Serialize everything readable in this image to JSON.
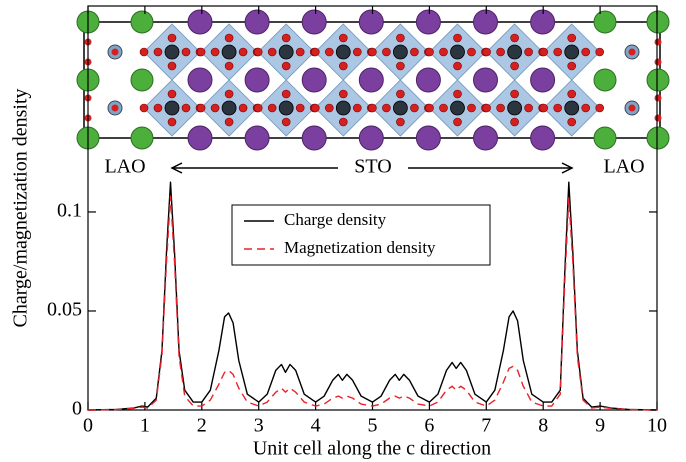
{
  "chart_data": {
    "type": "line",
    "x_label": "Unit cell along the c direction",
    "y_label": "Charge/magnetization density",
    "annotations": [
      "LAO",
      "STO",
      "LAO"
    ],
    "legend_position": "upper center",
    "xlim": [
      0,
      10
    ],
    "xticks": [
      0,
      1,
      2,
      3,
      4,
      5,
      6,
      7,
      8,
      9,
      10
    ],
    "ylim": [
      0,
      0.204
    ],
    "yticks": [
      0,
      0.05,
      0.1
    ],
    "x": [
      0,
      0.5,
      0.8,
      0.95,
      1.05,
      1.2,
      1.3,
      1.38,
      1.45,
      1.52,
      1.6,
      1.7,
      1.85,
      2.0,
      2.15,
      2.3,
      2.4,
      2.47,
      2.55,
      2.65,
      2.8,
      3.0,
      3.15,
      3.3,
      3.4,
      3.47,
      3.55,
      3.65,
      3.8,
      4.0,
      4.15,
      4.3,
      4.4,
      4.47,
      4.55,
      4.65,
      4.8,
      5.0,
      5.15,
      5.3,
      5.4,
      5.47,
      5.55,
      5.65,
      5.8,
      6.0,
      6.15,
      6.3,
      6.4,
      6.47,
      6.55,
      6.65,
      6.8,
      7.0,
      7.15,
      7.3,
      7.4,
      7.47,
      7.55,
      7.65,
      7.8,
      8.0,
      8.15,
      8.3,
      8.38,
      8.45,
      8.52,
      8.6,
      8.7,
      8.85,
      9.0,
      9.2,
      9.5,
      10
    ],
    "series": [
      {
        "name": "Charge density",
        "color": "#000000",
        "dash": "none",
        "values": [
          0,
          0.0003,
          0.001,
          0.002,
          0.0015,
          0.006,
          0.03,
          0.08,
          0.115,
          0.08,
          0.03,
          0.01,
          0.004,
          0.004,
          0.01,
          0.03,
          0.047,
          0.049,
          0.044,
          0.025,
          0.008,
          0.004,
          0.008,
          0.02,
          0.023,
          0.019,
          0.023,
          0.02,
          0.008,
          0.004,
          0.007,
          0.015,
          0.018,
          0.015,
          0.018,
          0.015,
          0.007,
          0.004,
          0.007,
          0.015,
          0.018,
          0.015,
          0.018,
          0.015,
          0.007,
          0.004,
          0.008,
          0.02,
          0.024,
          0.021,
          0.024,
          0.02,
          0.008,
          0.004,
          0.01,
          0.03,
          0.047,
          0.05,
          0.045,
          0.025,
          0.008,
          0.004,
          0.004,
          0.01,
          0.07,
          0.115,
          0.08,
          0.03,
          0.006,
          0.0015,
          0.002,
          0.001,
          0.0003,
          0
        ]
      },
      {
        "name": "Magnetization density",
        "color": "#e8222a",
        "dash": "8 5",
        "values": [
          0,
          0.0002,
          0.0008,
          0.0015,
          0.001,
          0.005,
          0.028,
          0.075,
          0.108,
          0.075,
          0.027,
          0.007,
          0.002,
          0.002,
          0.005,
          0.013,
          0.019,
          0.02,
          0.018,
          0.011,
          0.004,
          0.002,
          0.004,
          0.009,
          0.011,
          0.009,
          0.011,
          0.009,
          0.004,
          0.002,
          0.003,
          0.006,
          0.007,
          0.006,
          0.007,
          0.006,
          0.003,
          0.002,
          0.003,
          0.006,
          0.007,
          0.006,
          0.007,
          0.006,
          0.003,
          0.002,
          0.004,
          0.01,
          0.012,
          0.01,
          0.012,
          0.01,
          0.004,
          0.002,
          0.005,
          0.014,
          0.021,
          0.022,
          0.02,
          0.012,
          0.004,
          0.002,
          0.002,
          0.008,
          0.065,
          0.107,
          0.075,
          0.027,
          0.005,
          0.001,
          0.0015,
          0.0008,
          0.0002,
          0
        ]
      }
    ]
  }
}
